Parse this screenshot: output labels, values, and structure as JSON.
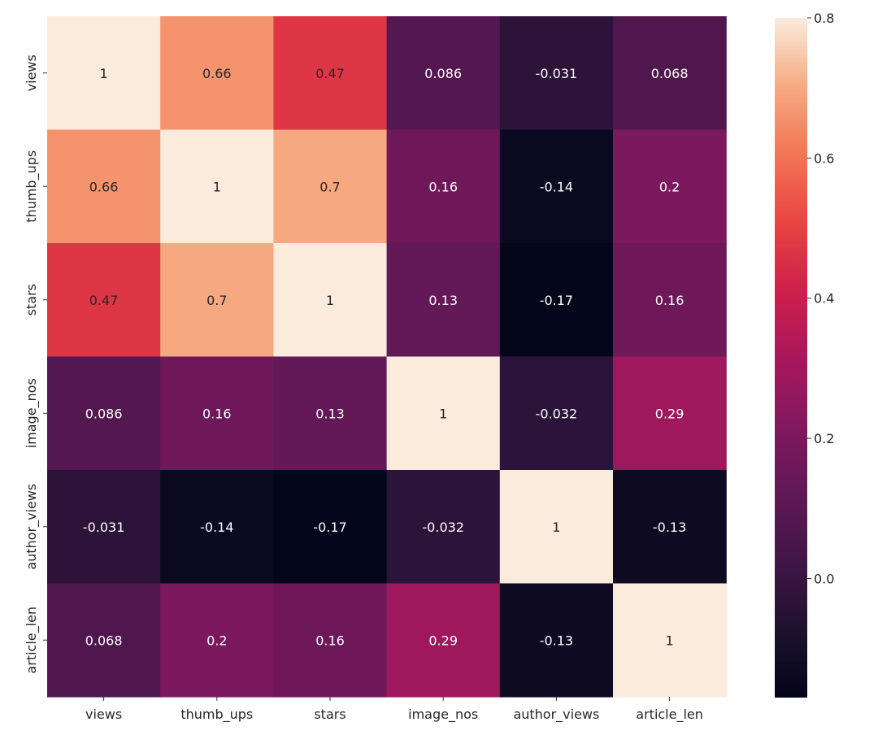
{
  "chart_data": {
    "type": "heatmap",
    "title": "",
    "xlabel": "",
    "ylabel": "",
    "x_categories": [
      "views",
      "thumb_ups",
      "stars",
      "image_nos",
      "author_views",
      "article_len"
    ],
    "y_categories": [
      "views",
      "thumb_ups",
      "stars",
      "image_nos",
      "author_views",
      "article_len"
    ],
    "values": [
      [
        1,
        0.66,
        0.47,
        0.086,
        -0.031,
        0.068
      ],
      [
        0.66,
        1,
        0.7,
        0.16,
        -0.14,
        0.2
      ],
      [
        0.47,
        0.7,
        1,
        0.13,
        -0.17,
        0.16
      ],
      [
        0.086,
        0.16,
        0.13,
        1,
        -0.032,
        0.29
      ],
      [
        -0.031,
        -0.14,
        -0.17,
        -0.032,
        1,
        -0.13
      ],
      [
        0.068,
        0.2,
        0.16,
        0.29,
        -0.13,
        1
      ]
    ],
    "annotations": [
      [
        "1",
        "0.66",
        "0.47",
        "0.086",
        "-0.031",
        "0.068"
      ],
      [
        "0.66",
        "1",
        "0.7",
        "0.16",
        "-0.14",
        "0.2"
      ],
      [
        "0.47",
        "0.7",
        "1",
        "0.13",
        "-0.17",
        "0.16"
      ],
      [
        "0.086",
        "0.16",
        "0.13",
        "1",
        "-0.032",
        "0.29"
      ],
      [
        "-0.031",
        "-0.14",
        "-0.17",
        "-0.032",
        "1",
        "-0.13"
      ],
      [
        "0.068",
        "0.2",
        "0.16",
        "0.29",
        "-0.13",
        "1"
      ]
    ],
    "color_range": [
      -0.17,
      0.8
    ],
    "colormap": "rocket",
    "colorbar_ticks": [
      0.8,
      0.6,
      0.4,
      0.2,
      0.0
    ],
    "colorbar_tick_labels": [
      "0.8",
      "0.6",
      "0.4",
      "0.2",
      "0.0"
    ],
    "legend": "colorbar-right",
    "grid": false
  }
}
